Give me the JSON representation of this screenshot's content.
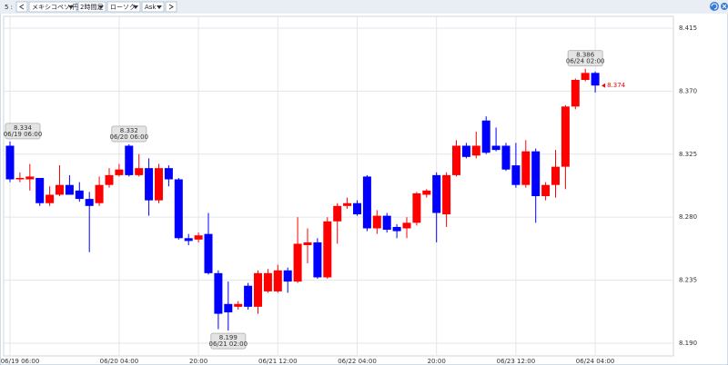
{
  "toolbar": {
    "window": "5 :",
    "currency": "メキシコペソ/円",
    "timeframe": "2時間足",
    "chart_style": "ローソク",
    "price": "Ask"
  },
  "chart_data": {
    "type": "candlestick",
    "categories": [
      "06/19 06:00",
      null,
      null,
      null,
      null,
      null,
      null,
      null,
      null,
      null,
      null,
      "06/20 04:00",
      null,
      null,
      null,
      null,
      null,
      null,
      null,
      "20:00",
      null,
      null,
      null,
      null,
      null,
      null,
      null,
      "06/21 12:00",
      null,
      null,
      null,
      null,
      null,
      null,
      null,
      "06/22 04:00",
      null,
      null,
      null,
      null,
      null,
      null,
      null,
      "20:00",
      null,
      null,
      null,
      null,
      null,
      null,
      null,
      "06/23 12:00",
      null,
      null,
      null,
      null,
      null,
      null,
      null,
      "06/24 04:00"
    ],
    "open": [
      8.331,
      8.307,
      8.307,
      8.308,
      8.29,
      8.296,
      8.303,
      8.299,
      8.293,
      8.29,
      8.303,
      8.31,
      8.331,
      8.31,
      8.315,
      8.292,
      8.315,
      8.307,
      8.265,
      8.264,
      8.268,
      8.24,
      8.218,
      8.216,
      8.231,
      8.216,
      8.227,
      8.227,
      8.242,
      8.234,
      8.26,
      8.262,
      8.237,
      8.277,
      8.288,
      8.29,
      8.309,
      8.272,
      8.281,
      8.273,
      8.272,
      8.276,
      8.296,
      8.31,
      8.282,
      8.31,
      8.331,
      8.324,
      8.349,
      8.331,
      8.331,
      8.317,
      8.303,
      8.327,
      8.295,
      8.303,
      8.316,
      8.359,
      8.378,
      8.383
    ],
    "high": [
      8.334,
      8.312,
      8.318,
      8.308,
      8.302,
      8.317,
      8.31,
      8.305,
      8.298,
      8.309,
      8.315,
      8.318,
      8.332,
      8.325,
      8.322,
      8.318,
      8.317,
      8.308,
      8.268,
      8.269,
      8.283,
      8.242,
      8.234,
      8.22,
      8.233,
      8.242,
      8.243,
      8.246,
      8.244,
      8.28,
      8.272,
      8.265,
      8.28,
      8.29,
      8.294,
      8.292,
      8.31,
      8.285,
      8.283,
      8.275,
      8.28,
      8.298,
      8.3,
      8.312,
      8.312,
      8.335,
      8.333,
      8.341,
      8.352,
      8.344,
      8.333,
      8.333,
      8.335,
      8.329,
      8.305,
      8.328,
      8.36,
      8.379,
      8.386,
      8.384
    ],
    "low": [
      8.305,
      8.305,
      8.299,
      8.288,
      8.288,
      8.295,
      8.296,
      8.291,
      8.255,
      8.288,
      8.301,
      8.309,
      8.309,
      8.309,
      8.281,
      8.29,
      8.302,
      8.264,
      8.26,
      8.262,
      8.239,
      8.2,
      8.199,
      8.214,
      8.214,
      8.211,
      8.226,
      8.226,
      8.226,
      8.233,
      8.247,
      8.236,
      8.236,
      8.261,
      8.286,
      8.281,
      8.27,
      8.268,
      8.269,
      8.265,
      8.265,
      8.274,
      8.294,
      8.262,
      8.273,
      8.309,
      8.322,
      8.322,
      8.325,
      8.327,
      8.313,
      8.301,
      8.301,
      8.276,
      8.292,
      8.294,
      8.3,
      8.357,
      8.377,
      8.369
    ],
    "close": [
      8.307,
      8.308,
      8.309,
      8.29,
      8.296,
      8.303,
      8.296,
      8.293,
      8.288,
      8.303,
      8.31,
      8.314,
      8.31,
      8.315,
      8.292,
      8.315,
      8.307,
      8.265,
      8.263,
      8.267,
      8.24,
      8.211,
      8.212,
      8.218,
      8.216,
      8.24,
      8.24,
      8.242,
      8.234,
      8.261,
      8.262,
      8.237,
      8.277,
      8.288,
      8.29,
      8.282,
      8.272,
      8.281,
      8.271,
      8.27,
      8.276,
      8.297,
      8.299,
      8.283,
      8.31,
      8.331,
      8.323,
      8.331,
      8.326,
      8.328,
      8.314,
      8.303,
      8.327,
      8.295,
      8.303,
      8.316,
      8.359,
      8.378,
      8.383,
      8.374
    ],
    "up_color": "#ff0000",
    "down_color": "#0000ff",
    "ylim": [
      8.1809,
      8.4234
    ],
    "yticks": [
      8.415,
      {
        "value": 8.37,
        "label": "8.370"
      },
      8.325,
      {
        "value": 8.28,
        "label": "8.280"
      },
      8.235,
      {
        "value": 8.19,
        "label": "8.190"
      }
    ],
    "grid": true,
    "annotations": [
      {
        "value": 8.334,
        "time": "06/19 06:00"
      },
      {
        "value": 8.332,
        "time": "06/20 06:00"
      },
      {
        "value": 8.199,
        "time": "06/21 02:00"
      },
      {
        "value": 8.386,
        "time": "06/24 02:00"
      }
    ],
    "last_price": 8.374,
    "last_price_color": "#ff0000"
  }
}
